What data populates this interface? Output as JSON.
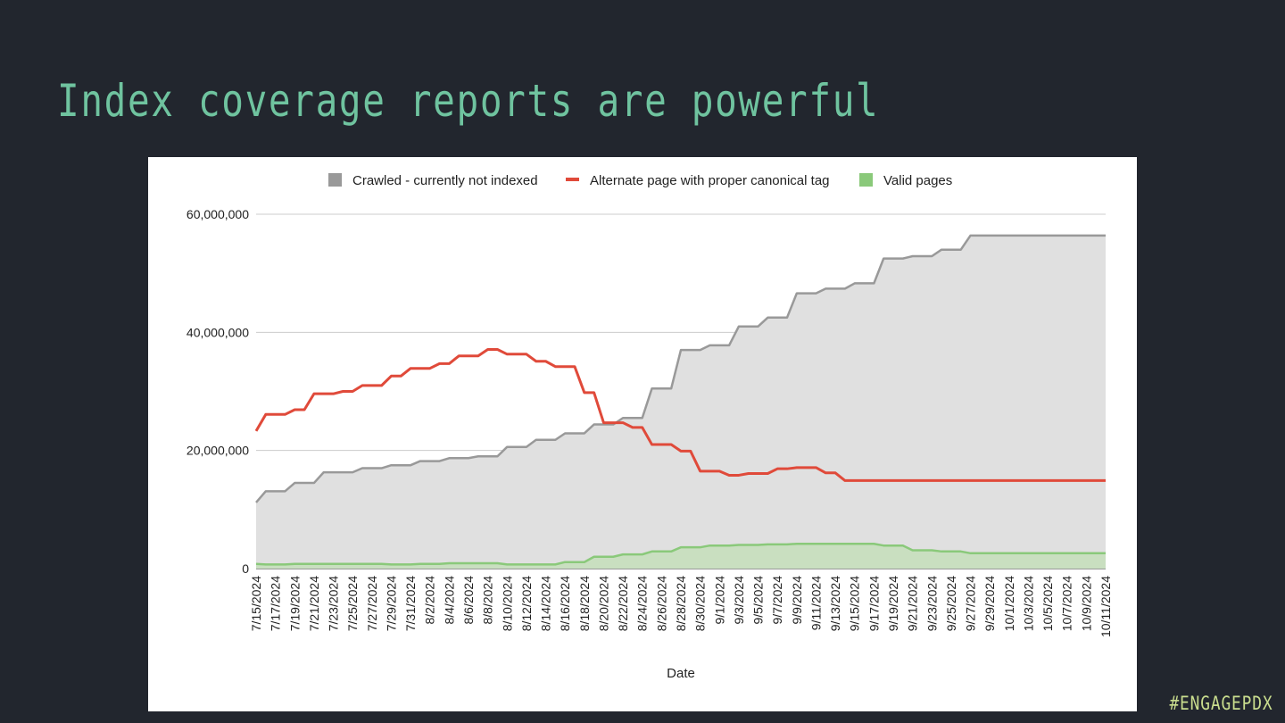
{
  "slide": {
    "title": "Index coverage reports are powerful",
    "hashtag": "#ENGAGEPDX"
  },
  "colors": {
    "background": "#22262e",
    "title": "#6fc39f",
    "hashtag": "#c9dd8e",
    "crawled": "#999999",
    "crawled_fill": "#e0e0e0",
    "alternate": "#e04a3a",
    "valid": "#8ac97a",
    "valid_fill": "#c9dfc0",
    "grid": "#cccccc"
  },
  "chart_data": {
    "type": "area",
    "title": "",
    "xlabel": "Date",
    "ylabel": "",
    "ylim": [
      0,
      60000000
    ],
    "yticks": [
      0,
      20000000,
      40000000,
      60000000
    ],
    "ytick_labels": [
      "0",
      "20,000,000",
      "40,000,000",
      "60,000,000"
    ],
    "legend_position": "top",
    "grid": true,
    "x": [
      "7/15/2024",
      "7/16/2024",
      "7/17/2024",
      "7/18/2024",
      "7/19/2024",
      "7/20/2024",
      "7/21/2024",
      "7/22/2024",
      "7/23/2024",
      "7/24/2024",
      "7/25/2024",
      "7/26/2024",
      "7/27/2024",
      "7/28/2024",
      "7/29/2024",
      "7/30/2024",
      "7/31/2024",
      "8/1/2024",
      "8/2/2024",
      "8/3/2024",
      "8/4/2024",
      "8/5/2024",
      "8/6/2024",
      "8/7/2024",
      "8/8/2024",
      "8/9/2024",
      "8/10/2024",
      "8/11/2024",
      "8/12/2024",
      "8/13/2024",
      "8/14/2024",
      "8/15/2024",
      "8/16/2024",
      "8/17/2024",
      "8/18/2024",
      "8/19/2024",
      "8/20/2024",
      "8/21/2024",
      "8/22/2024",
      "8/23/2024",
      "8/24/2024",
      "8/25/2024",
      "8/26/2024",
      "8/27/2024",
      "8/28/2024",
      "8/29/2024",
      "8/30/2024",
      "8/31/2024",
      "9/1/2024",
      "9/2/2024",
      "9/3/2024",
      "9/4/2024",
      "9/5/2024",
      "9/6/2024",
      "9/7/2024",
      "9/8/2024",
      "9/9/2024",
      "9/10/2024",
      "9/11/2024",
      "9/12/2024",
      "9/13/2024",
      "9/14/2024",
      "9/15/2024",
      "9/16/2024",
      "9/17/2024",
      "9/18/2024",
      "9/19/2024",
      "9/20/2024",
      "9/21/2024",
      "9/22/2024",
      "9/23/2024",
      "9/24/2024",
      "9/25/2024",
      "9/26/2024",
      "9/27/2024",
      "9/28/2024",
      "9/29/2024",
      "9/30/2024",
      "10/1/2024",
      "10/2/2024",
      "10/3/2024",
      "10/4/2024",
      "10/5/2024",
      "10/6/2024",
      "10/7/2024",
      "10/8/2024",
      "10/9/2024",
      "10/10/2024",
      "10/11/2024"
    ],
    "x_tick_every": 2,
    "series": [
      {
        "name": "Crawled - currently not indexed",
        "style": "area",
        "values": [
          11200000,
          13100000,
          13100000,
          13100000,
          14500000,
          14500000,
          14500000,
          16300000,
          16300000,
          16300000,
          16300000,
          17000000,
          17000000,
          17000000,
          17500000,
          17500000,
          17500000,
          18200000,
          18200000,
          18200000,
          18700000,
          18700000,
          18700000,
          19000000,
          19000000,
          19000000,
          20600000,
          20600000,
          20600000,
          21800000,
          21800000,
          21800000,
          22900000,
          22900000,
          22900000,
          24400000,
          24400000,
          24400000,
          25500000,
          25500000,
          25500000,
          30500000,
          30500000,
          30500000,
          37000000,
          37000000,
          37000000,
          37800000,
          37800000,
          37800000,
          41000000,
          41000000,
          41000000,
          42500000,
          42500000,
          42500000,
          46600000,
          46600000,
          46600000,
          47400000,
          47400000,
          47400000,
          48300000,
          48300000,
          48300000,
          52500000,
          52500000,
          52500000,
          52900000,
          52900000,
          52900000,
          54000000,
          54000000,
          54000000,
          56400000,
          56400000,
          56400000,
          56400000,
          56400000,
          56400000,
          56400000,
          56400000,
          56400000,
          56400000,
          56400000,
          56400000,
          56400000,
          56400000,
          56400000
        ]
      },
      {
        "name": "Alternate page with proper canonical tag",
        "style": "line",
        "values": [
          23300000,
          26100000,
          26100000,
          26100000,
          26900000,
          26900000,
          29600000,
          29600000,
          29600000,
          30000000,
          30000000,
          31000000,
          31000000,
          31000000,
          32600000,
          32600000,
          33900000,
          33900000,
          33900000,
          34700000,
          34700000,
          36000000,
          36000000,
          36000000,
          37100000,
          37100000,
          36300000,
          36300000,
          36300000,
          35100000,
          35100000,
          34200000,
          34200000,
          34200000,
          29800000,
          29800000,
          24700000,
          24700000,
          24700000,
          23900000,
          23900000,
          21000000,
          21000000,
          21000000,
          19900000,
          19900000,
          16500000,
          16500000,
          16500000,
          15800000,
          15800000,
          16100000,
          16100000,
          16100000,
          16900000,
          16900000,
          17100000,
          17100000,
          17100000,
          16200000,
          16200000,
          14900000,
          14900000,
          14900000,
          14900000,
          14900000,
          14900000,
          14900000,
          14900000,
          14900000,
          14900000,
          14900000,
          14900000,
          14900000,
          14900000,
          14900000,
          14900000,
          14900000,
          14900000,
          14900000,
          14900000,
          14900000,
          14900000,
          14900000,
          14900000,
          14900000,
          14900000,
          14900000,
          14900000
        ]
      },
      {
        "name": "Valid pages",
        "style": "area",
        "values": [
          800000,
          700000,
          700000,
          700000,
          800000,
          800000,
          800000,
          800000,
          800000,
          800000,
          800000,
          800000,
          800000,
          800000,
          700000,
          700000,
          700000,
          800000,
          800000,
          800000,
          900000,
          900000,
          900000,
          900000,
          900000,
          900000,
          700000,
          700000,
          700000,
          700000,
          700000,
          700000,
          1100000,
          1100000,
          1100000,
          2000000,
          2000000,
          2000000,
          2400000,
          2400000,
          2400000,
          2900000,
          2900000,
          2900000,
          3600000,
          3600000,
          3600000,
          3900000,
          3900000,
          3900000,
          4000000,
          4000000,
          4000000,
          4100000,
          4100000,
          4100000,
          4200000,
          4200000,
          4200000,
          4200000,
          4200000,
          4200000,
          4200000,
          4200000,
          4200000,
          3900000,
          3900000,
          3900000,
          3100000,
          3100000,
          3100000,
          2900000,
          2900000,
          2900000,
          2600000,
          2600000,
          2600000,
          2600000,
          2600000,
          2600000,
          2600000,
          2600000,
          2600000,
          2600000,
          2600000,
          2600000,
          2600000,
          2600000,
          2600000
        ]
      }
    ]
  }
}
